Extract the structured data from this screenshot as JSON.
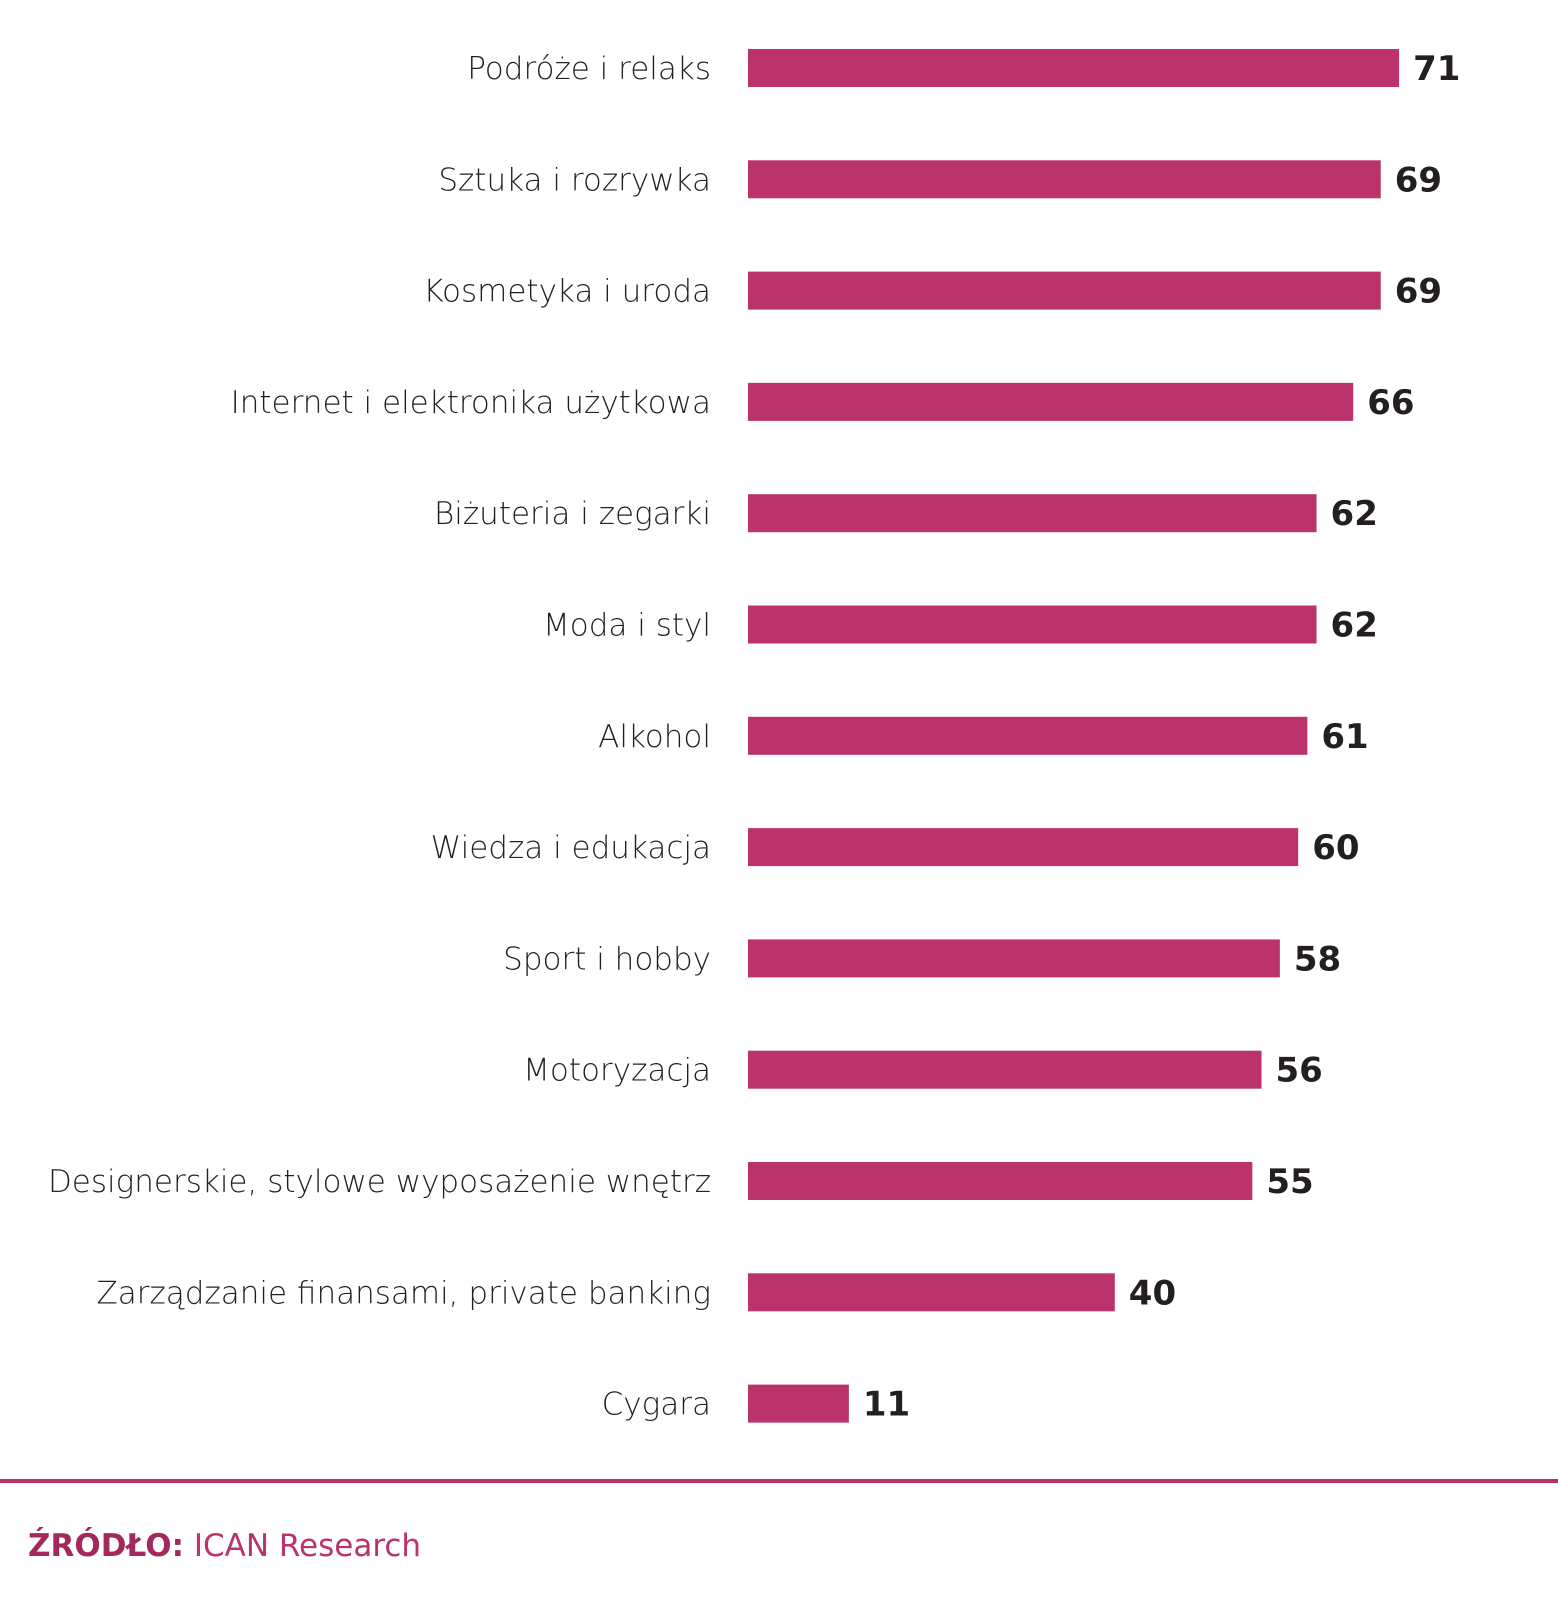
{
  "chart_data": {
    "type": "bar",
    "orientation": "horizontal",
    "title": "",
    "xlabel": "",
    "ylabel": "",
    "xlim": [
      0,
      71
    ],
    "grid": false,
    "bar_color": "#bb336d",
    "categories": [
      "Podróże i relaks",
      "Sztuka i rozrywka",
      "Kosmetyka i uroda",
      "Internet i elektronika użytkowa",
      "Biżuteria i zegarki",
      "Moda i styl",
      "Alkohol",
      "Wiedza i edukacja",
      "Sport i hobby",
      "Motoryzacja",
      "Designerskie, stylowe wyposażenie wnętrz",
      "Zarządzanie finansami, private banking",
      "Cygara"
    ],
    "values": [
      71,
      69,
      69,
      66,
      62,
      62,
      61,
      60,
      58,
      56,
      55,
      40,
      11
    ]
  },
  "footer": {
    "source_label": "ŹRÓDŁO:",
    "source_text": "ICAN Research"
  },
  "colors": {
    "accent": "#bb336d",
    "text": "#231f20"
  }
}
